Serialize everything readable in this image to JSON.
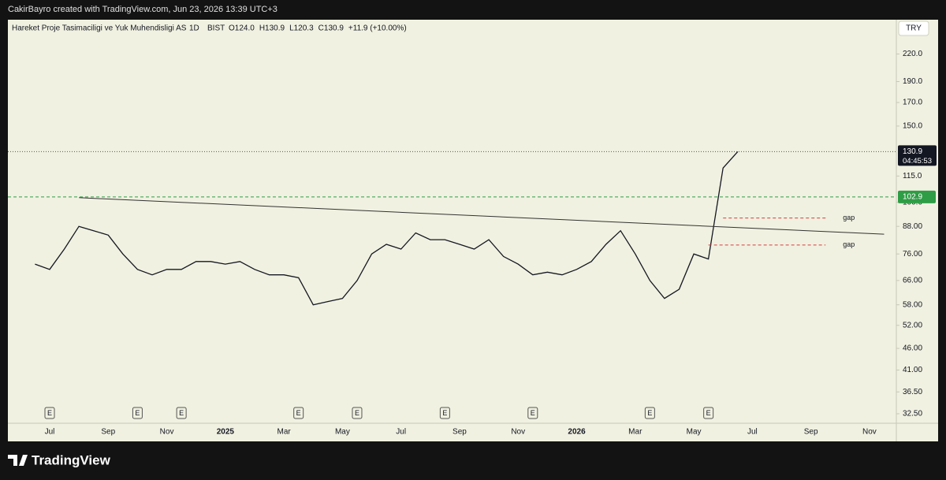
{
  "credit": "CakirBayro created with TradingView.com, Jun 23, 2026 13:39 UTC+3",
  "brand": "TradingView",
  "chart_data": {
    "type": "line",
    "title": "Hareket Proje Tasimaciligi ve Yuk Muhendisligi AS",
    "interval": "1D",
    "exchange": "BIST",
    "ohlc": [
      "O124.0",
      "H130.9",
      "L120.3",
      "C130.9",
      "+11.9 (+10.00%)"
    ],
    "currency": "TRY",
    "log_scale": true,
    "grid": false,
    "categories": [
      null,
      "Jul",
      null,
      null,
      null,
      "Sep",
      null,
      null,
      null,
      "Nov",
      null,
      null,
      null,
      "2025",
      null,
      null,
      null,
      "Mar",
      null,
      null,
      null,
      "May",
      null,
      null,
      null,
      "Jul",
      null,
      null,
      null,
      "Sep",
      null,
      null,
      null,
      "Nov",
      null,
      null,
      null,
      "2026",
      null,
      null,
      null,
      "Mar",
      null,
      null,
      null,
      "May",
      null,
      null,
      null,
      "Jul",
      null,
      null,
      null,
      "Sep",
      null,
      null,
      null,
      "Nov",
      null
    ],
    "series": [
      {
        "color": "#131722",
        "values": [
          72,
          70,
          78,
          88,
          86,
          84,
          76,
          70,
          68,
          70,
          70,
          73,
          73,
          72,
          73,
          70,
          68,
          68,
          67,
          58,
          59,
          60,
          66,
          76,
          80,
          78,
          85,
          82,
          82,
          80,
          78,
          82,
          75,
          72,
          68,
          69,
          68,
          70,
          73,
          80,
          86,
          76,
          66,
          60,
          63,
          76,
          74,
          120,
          130.9,
          null,
          null,
          null,
          null,
          null,
          null,
          null,
          null,
          null,
          null
        ]
      }
    ],
    "ylim": [
      30.9,
      264
    ],
    "yticks": [
      {
        "value": 32.5,
        "label": "32.50"
      },
      {
        "value": 36.5,
        "label": "36.50"
      },
      {
        "value": 41,
        "label": "41.00"
      },
      {
        "value": 46,
        "label": "46.00"
      },
      {
        "value": 52,
        "label": "52.00"
      },
      {
        "value": 58,
        "label": "58.00"
      },
      {
        "value": 66,
        "label": "66.00"
      },
      {
        "value": 76,
        "label": "76.00"
      },
      {
        "value": 88,
        "label": "88.00"
      },
      {
        "value": 100,
        "label": "100.0"
      },
      {
        "value": 115,
        "label": "115.0"
      },
      {
        "value": 150,
        "label": "150.0"
      },
      {
        "value": 170,
        "label": "170.0"
      },
      {
        "value": 190,
        "label": "190.0"
      },
      {
        "value": 220,
        "label": "220.0"
      }
    ],
    "last_price": 130.9,
    "countdown": "04:45:53",
    "level": {
      "value": 102.9,
      "color": "#2e9d45"
    },
    "trendline": {
      "index": [
        3,
        58
      ],
      "values": [
        102.5,
        84.4
      ]
    },
    "gaps": [
      {
        "label": "gap",
        "value": 92,
        "index": [
          47,
          54
        ]
      },
      {
        "label": "gap",
        "value": 79.7,
        "index": [
          46,
          54
        ]
      }
    ],
    "earnings": {
      "label": "E",
      "index": [
        1,
        7,
        10,
        18,
        22,
        28,
        34,
        42,
        46
      ]
    }
  }
}
